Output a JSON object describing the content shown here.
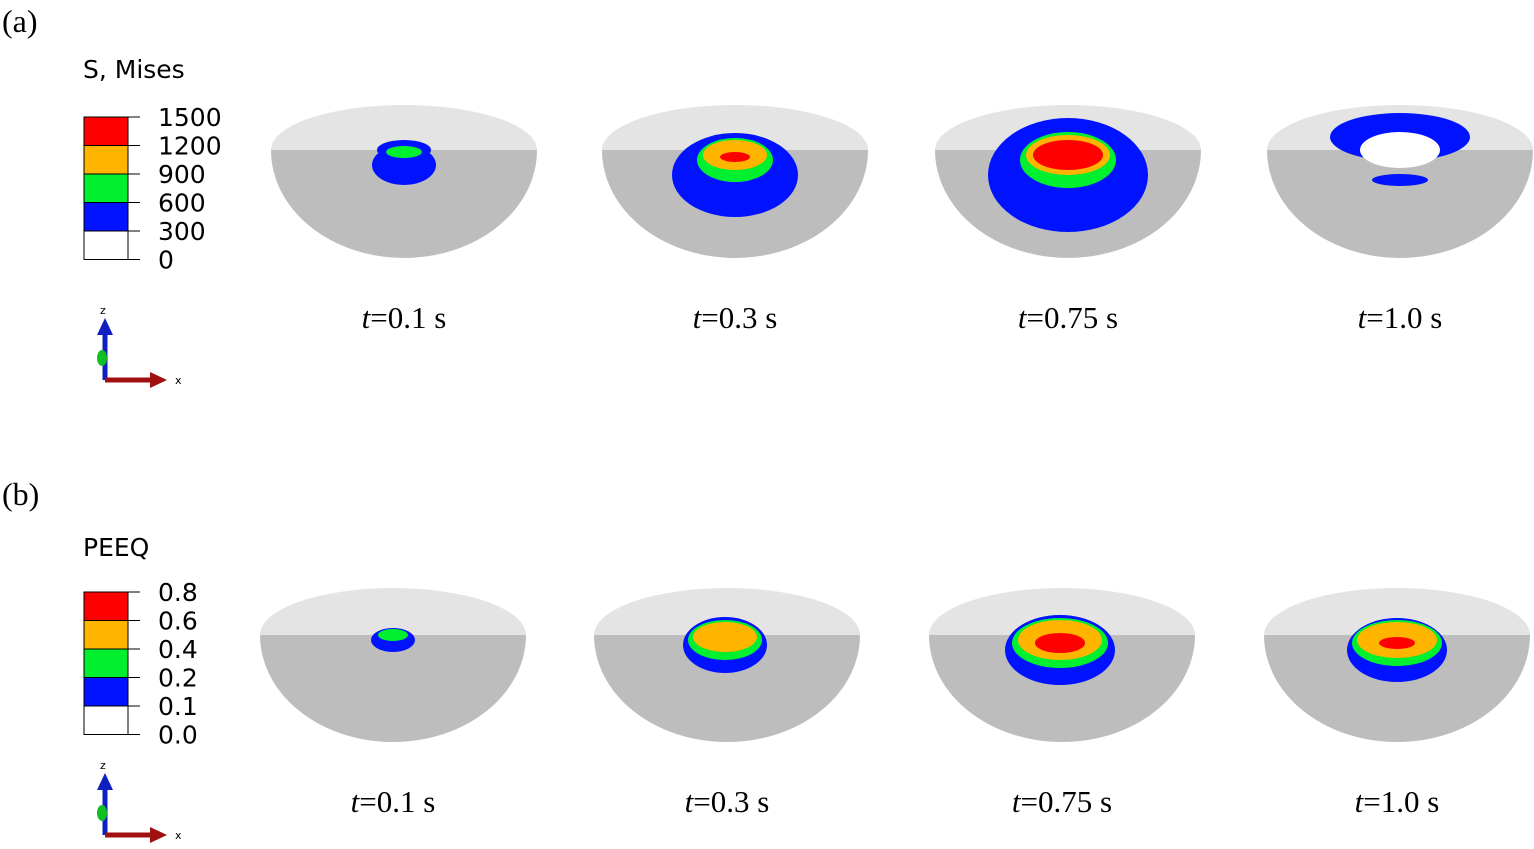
{
  "legend_colors": [
    "#ff0000",
    "#ffb400",
    "#00f030",
    "#0012ff",
    "#ffffff"
  ],
  "panels": [
    {
      "label": "(a)",
      "legend_title": "S, Mises",
      "legend_ticks": [
        "1500",
        "1200",
        "900",
        "600",
        "300",
        "0"
      ],
      "axes": {
        "z": "z",
        "x": "x"
      },
      "times": [
        {
          "var": "t",
          "rest": "=0.1 s"
        },
        {
          "var": "t",
          "rest": "=0.3 s"
        },
        {
          "var": "t",
          "rest": "=0.75 s"
        },
        {
          "var": "t",
          "rest": "=1.0 s"
        }
      ]
    },
    {
      "label": "(b)",
      "legend_title": "PEEQ",
      "legend_ticks": [
        "0.8",
        "0.6",
        "0.4",
        "0.2",
        "0.1",
        "0.0"
      ],
      "axes": {
        "z": "z",
        "x": "x"
      },
      "times": [
        {
          "var": "t",
          "rest": "=0.1 s"
        },
        {
          "var": "t",
          "rest": "=0.3 s"
        },
        {
          "var": "t",
          "rest": "=0.75 s"
        },
        {
          "var": "t",
          "rest": "=1.0 s"
        }
      ]
    }
  ]
}
